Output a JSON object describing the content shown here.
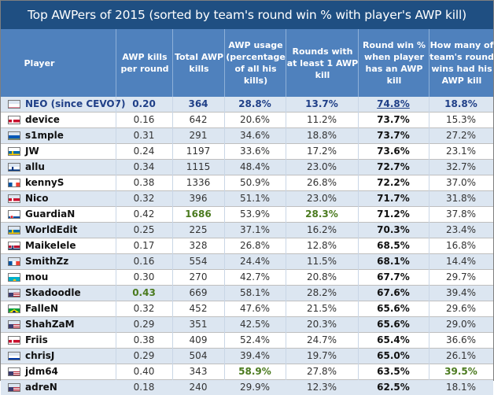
{
  "title": "Top AWPers of 2015 (sorted by team's round win % with player's AWP kill)",
  "headers": {
    "player": "Player",
    "awp_kills_per_round": "AWP kills per round",
    "total_awp_kills": "Total AWP kills",
    "awp_usage": "AWP usage (percentage of all his kills)",
    "rounds_with_awp_kill": "Rounds with at least 1 AWP kill",
    "round_win_pct": "Round win % when player has an AWP kill",
    "team_round_wins_pct": "How many of team's round wins had his AWP kill"
  },
  "colors": {
    "title_bg": "#1f4f82",
    "header_bg": "#4f81bd",
    "alt_row_bg": "#dce6f1",
    "highlight_blue": "#1f3f87",
    "highlight_green": "#4a7a1e"
  },
  "rows": [
    {
      "flag": "poland",
      "player": "NEO (since CEVO7)",
      "kpr": "0.20",
      "kills": "364",
      "usage": "28.8%",
      "rounds": "13.7%",
      "win": "74.8%",
      "share": "18.8%"
    },
    {
      "flag": "denmark",
      "player": "device",
      "kpr": "0.16",
      "kills": "642",
      "usage": "20.6%",
      "rounds": "11.2%",
      "win": "73.7%",
      "share": "15.3%"
    },
    {
      "flag": "ukraine",
      "player": "s1mple",
      "kpr": "0.31",
      "kills": "291",
      "usage": "34.6%",
      "rounds": "18.8%",
      "win": "73.7%",
      "share": "27.2%"
    },
    {
      "flag": "sweden",
      "player": "JW",
      "kpr": "0.24",
      "kills": "1197",
      "usage": "33.6%",
      "rounds": "17.2%",
      "win": "73.6%",
      "share": "23.1%"
    },
    {
      "flag": "finland",
      "player": "allu",
      "kpr": "0.34",
      "kills": "1115",
      "usage": "48.4%",
      "rounds": "23.0%",
      "win": "72.7%",
      "share": "32.7%"
    },
    {
      "flag": "france",
      "player": "kennyS",
      "kpr": "0.38",
      "kills": "1336",
      "usage": "50.9%",
      "rounds": "26.8%",
      "win": "72.2%",
      "share": "37.0%"
    },
    {
      "flag": "denmark",
      "player": "Nico",
      "kpr": "0.32",
      "kills": "396",
      "usage": "51.1%",
      "rounds": "23.0%",
      "win": "71.7%",
      "share": "31.8%"
    },
    {
      "flag": "slovakia",
      "player": "GuardiaN",
      "kpr": "0.42",
      "kills": "1686",
      "usage": "53.9%",
      "rounds": "28.3%",
      "win": "71.2%",
      "share": "37.8%"
    },
    {
      "flag": "sweden",
      "player": "WorldEdit",
      "kpr": "0.25",
      "kills": "225",
      "usage": "37.1%",
      "rounds": "16.2%",
      "win": "70.3%",
      "share": "23.4%"
    },
    {
      "flag": "norway",
      "player": "Maikelele",
      "kpr": "0.17",
      "kills": "328",
      "usage": "26.8%",
      "rounds": "12.8%",
      "win": "68.5%",
      "share": "16.8%"
    },
    {
      "flag": "france",
      "player": "SmithZz",
      "kpr": "0.16",
      "kills": "554",
      "usage": "24.4%",
      "rounds": "11.5%",
      "win": "68.1%",
      "share": "14.4%"
    },
    {
      "flag": "kazakhstan",
      "player": "mou",
      "kpr": "0.30",
      "kills": "270",
      "usage": "42.7%",
      "rounds": "20.8%",
      "win": "67.7%",
      "share": "29.7%"
    },
    {
      "flag": "usa",
      "player": "Skadoodle",
      "kpr": "0.43",
      "kills": "669",
      "usage": "58.1%",
      "rounds": "28.2%",
      "win": "67.6%",
      "share": "39.4%"
    },
    {
      "flag": "brazil",
      "player": "FalleN",
      "kpr": "0.32",
      "kills": "452",
      "usage": "47.6%",
      "rounds": "21.5%",
      "win": "65.6%",
      "share": "29.6%"
    },
    {
      "flag": "usa",
      "player": "ShahZaM",
      "kpr": "0.29",
      "kills": "351",
      "usage": "42.5%",
      "rounds": "20.3%",
      "win": "65.6%",
      "share": "29.0%"
    },
    {
      "flag": "denmark",
      "player": "Friis",
      "kpr": "0.38",
      "kills": "409",
      "usage": "52.4%",
      "rounds": "24.7%",
      "win": "65.4%",
      "share": "36.6%"
    },
    {
      "flag": "russia",
      "player": "chrisJ",
      "kpr": "0.29",
      "kills": "504",
      "usage": "39.4%",
      "rounds": "19.7%",
      "win": "65.0%",
      "share": "26.1%"
    },
    {
      "flag": "usa",
      "player": "jdm64",
      "kpr": "0.40",
      "kills": "343",
      "usage": "58.9%",
      "rounds": "27.8%",
      "win": "63.5%",
      "share": "39.5%"
    },
    {
      "flag": "usa",
      "player": "adreN",
      "kpr": "0.18",
      "kills": "240",
      "usage": "29.9%",
      "rounds": "12.3%",
      "win": "62.5%",
      "share": "18.1%"
    }
  ],
  "highlights": [
    {
      "row": 7,
      "field": "kills"
    },
    {
      "row": 7,
      "field": "rounds"
    },
    {
      "row": 12,
      "field": "kpr"
    },
    {
      "row": 17,
      "field": "usage"
    },
    {
      "row": 17,
      "field": "share"
    }
  ]
}
